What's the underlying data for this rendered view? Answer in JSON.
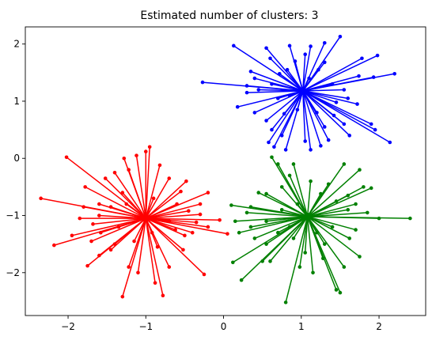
{
  "chart_data": {
    "type": "scatter",
    "title": "Estimated number of clusters:  3",
    "xlabel": "",
    "ylabel": "",
    "xlim": [
      -2.55,
      2.6
    ],
    "ylim": [
      -2.75,
      2.3
    ],
    "x_ticks": [
      -2,
      -1,
      0,
      1,
      2
    ],
    "y_ticks": [
      -2,
      -1,
      0,
      1,
      2
    ],
    "x_tick_labels": [
      "−2",
      "−1",
      "0",
      "1",
      "2"
    ],
    "y_tick_labels": [
      "−2",
      "−1",
      "0",
      "1",
      "2"
    ],
    "grid": false,
    "legend": "none",
    "series": [
      {
        "center": [
          1.02,
          1.18
        ],
        "color": "#0000ff",
        "points": [
          [
            1.5,
            2.13
          ],
          [
            1.3,
            2.02
          ],
          [
            1.12,
            1.96
          ],
          [
            0.85,
            1.97
          ],
          [
            0.55,
            1.93
          ],
          [
            0.13,
            1.97
          ],
          [
            0.6,
            1.75
          ],
          [
            1.78,
            1.75
          ],
          [
            1.98,
            1.8
          ],
          [
            2.2,
            1.48
          ],
          [
            1.74,
            1.44
          ],
          [
            1.93,
            1.42
          ],
          [
            1.3,
            1.68
          ],
          [
            1.05,
            1.82
          ],
          [
            0.92,
            1.7
          ],
          [
            0.72,
            1.48
          ],
          [
            0.35,
            1.52
          ],
          [
            0.4,
            1.4
          ],
          [
            0.62,
            1.3
          ],
          [
            -0.27,
            1.33
          ],
          [
            0.3,
            1.15
          ],
          [
            0.18,
            0.9
          ],
          [
            0.4,
            0.8
          ],
          [
            0.55,
            0.66
          ],
          [
            0.62,
            0.5
          ],
          [
            0.75,
            0.4
          ],
          [
            0.58,
            0.28
          ],
          [
            0.65,
            0.2
          ],
          [
            0.8,
            0.15
          ],
          [
            1.05,
            0.3
          ],
          [
            1.12,
            0.15
          ],
          [
            1.3,
            0.55
          ],
          [
            1.35,
            0.32
          ],
          [
            1.55,
            0.6
          ],
          [
            1.25,
            0.22
          ],
          [
            1.62,
            0.4
          ],
          [
            1.9,
            0.6
          ],
          [
            1.95,
            0.5
          ],
          [
            2.14,
            0.28
          ],
          [
            1.72,
            0.95
          ],
          [
            1.6,
            1.05
          ],
          [
            1.45,
            0.98
          ],
          [
            0.45,
            1.2
          ],
          [
            0.7,
            1.05
          ],
          [
            0.85,
            1.1
          ],
          [
            1.1,
            1.4
          ],
          [
            1.4,
            1.3
          ],
          [
            1.55,
            1.2
          ],
          [
            0.95,
            0.85
          ],
          [
            0.78,
            0.78
          ],
          [
            1.2,
            0.8
          ],
          [
            1.42,
            0.75
          ],
          [
            0.3,
            1.27
          ],
          [
            0.82,
            1.55
          ],
          [
            1.22,
            1.55
          ]
        ]
      },
      {
        "center": [
          -1.0,
          -1.05
        ],
        "color": "#ff0000",
        "points": [
          [
            -2.35,
            -0.7
          ],
          [
            -2.02,
            0.02
          ],
          [
            -1.78,
            -0.5
          ],
          [
            -1.95,
            -1.35
          ],
          [
            -2.18,
            -1.52
          ],
          [
            -1.75,
            -1.88
          ],
          [
            -1.6,
            -1.7
          ],
          [
            -1.58,
            -1.3
          ],
          [
            -1.4,
            -1.5
          ],
          [
            -1.3,
            -2.42
          ],
          [
            -1.22,
            -1.9
          ],
          [
            -1.1,
            -2.0
          ],
          [
            -0.88,
            -2.18
          ],
          [
            -0.78,
            -2.4
          ],
          [
            -0.7,
            -1.9
          ],
          [
            -0.52,
            -1.6
          ],
          [
            -0.25,
            -2.03
          ],
          [
            -0.4,
            -1.3
          ],
          [
            -0.2,
            -1.2
          ],
          [
            0.05,
            -1.32
          ],
          [
            -0.05,
            -1.08
          ],
          [
            -0.3,
            -0.98
          ],
          [
            -0.2,
            -0.6
          ],
          [
            -0.48,
            -0.4
          ],
          [
            -0.55,
            -0.58
          ],
          [
            -0.7,
            -0.35
          ],
          [
            -0.82,
            -0.12
          ],
          [
            -0.95,
            0.2
          ],
          [
            -1.0,
            0.12
          ],
          [
            -1.12,
            0.05
          ],
          [
            -1.22,
            -0.2
          ],
          [
            -1.28,
            0.0
          ],
          [
            -1.4,
            -0.25
          ],
          [
            -1.52,
            -0.35
          ],
          [
            -1.6,
            -0.8
          ],
          [
            -1.8,
            -0.85
          ],
          [
            -1.85,
            -1.05
          ],
          [
            -1.68,
            -1.15
          ],
          [
            -1.45,
            -0.85
          ],
          [
            -1.3,
            -0.6
          ],
          [
            -0.6,
            -0.8
          ],
          [
            -0.45,
            -0.92
          ],
          [
            -0.35,
            -1.12
          ],
          [
            -0.62,
            -1.25
          ],
          [
            -0.85,
            -1.55
          ],
          [
            -1.15,
            -1.45
          ],
          [
            -1.35,
            -1.2
          ],
          [
            -1.25,
            -0.8
          ],
          [
            -0.9,
            -0.7
          ],
          [
            -0.7,
            -1.1
          ],
          [
            -1.45,
            -1.6
          ],
          [
            -0.5,
            -1.35
          ],
          [
            -0.92,
            -1.3
          ],
          [
            -1.6,
            -1.0
          ],
          [
            -0.3,
            -0.8
          ],
          [
            -1.7,
            -1.45
          ]
        ]
      },
      {
        "center": [
          1.08,
          -1.02
        ],
        "color": "#008000",
        "points": [
          [
            0.12,
            -1.82
          ],
          [
            0.23,
            -2.13
          ],
          [
            0.5,
            -1.8
          ],
          [
            0.55,
            -1.5
          ],
          [
            0.8,
            -2.52
          ],
          [
            0.98,
            -1.9
          ],
          [
            1.15,
            -2.0
          ],
          [
            1.28,
            -1.75
          ],
          [
            1.45,
            -2.3
          ],
          [
            1.5,
            -2.35
          ],
          [
            1.55,
            -1.9
          ],
          [
            1.75,
            -1.72
          ],
          [
            1.62,
            -1.4
          ],
          [
            1.3,
            -1.5
          ],
          [
            0.9,
            -1.4
          ],
          [
            0.7,
            -1.3
          ],
          [
            0.4,
            -1.4
          ],
          [
            0.2,
            -1.3
          ],
          [
            0.15,
            -1.1
          ],
          [
            0.1,
            -0.82
          ],
          [
            0.35,
            -0.85
          ],
          [
            0.45,
            -0.6
          ],
          [
            0.55,
            -0.62
          ],
          [
            0.75,
            -0.5
          ],
          [
            0.85,
            -0.3
          ],
          [
            0.62,
            0.02
          ],
          [
            0.7,
            -0.1
          ],
          [
            0.9,
            -0.1
          ],
          [
            1.12,
            -0.4
          ],
          [
            1.25,
            -0.62
          ],
          [
            1.35,
            -0.45
          ],
          [
            1.55,
            -0.1
          ],
          [
            1.75,
            -0.2
          ],
          [
            1.8,
            -0.5
          ],
          [
            1.9,
            -0.52
          ],
          [
            2.4,
            -1.05
          ],
          [
            2.0,
            -1.05
          ],
          [
            1.85,
            -0.95
          ],
          [
            1.7,
            -1.25
          ],
          [
            1.6,
            -0.9
          ],
          [
            1.45,
            -0.75
          ],
          [
            0.55,
            -1.1
          ],
          [
            0.75,
            -0.9
          ],
          [
            0.95,
            -0.8
          ],
          [
            1.4,
            -1.2
          ],
          [
            1.2,
            -1.3
          ],
          [
            0.85,
            -1.2
          ],
          [
            0.35,
            -1.2
          ],
          [
            1.05,
            -1.65
          ],
          [
            1.6,
            -0.65
          ],
          [
            0.6,
            -1.8
          ],
          [
            0.3,
            -0.95
          ],
          [
            1.7,
            -0.8
          ]
        ]
      }
    ]
  }
}
